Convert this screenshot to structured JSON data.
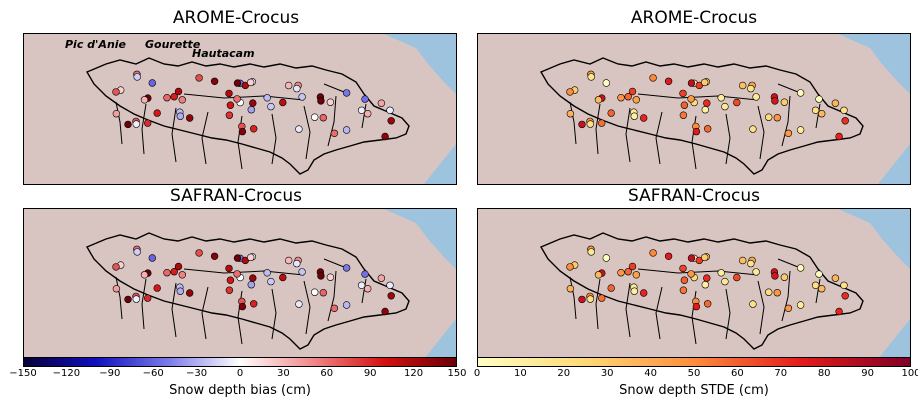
{
  "panels": [
    {
      "title": "AROME-Crocus"
    },
    {
      "title": "AROME-Crocus"
    },
    {
      "title": "SAFRAN-Crocus"
    },
    {
      "title": "SAFRAN-Crocus"
    }
  ],
  "site_labels": [
    "Pic d'Anie",
    "Gourette",
    "Hautacam"
  ],
  "colorbar_bias": {
    "label": "Snow depth bias (cm)",
    "ticks": [
      "−150",
      "−120",
      "−90",
      "−60",
      "−30",
      "0",
      "30",
      "60",
      "90",
      "120",
      "150"
    ],
    "colors": [
      "#08003a",
      "#1010c0",
      "#7a7ae8",
      "#ffffff",
      "#f08a8a",
      "#d41010",
      "#6a0008"
    ]
  },
  "colorbar_stde": {
    "label": "Snow depth STDE (cm)",
    "ticks": [
      "0",
      "10",
      "20",
      "30",
      "40",
      "50",
      "60",
      "70",
      "80",
      "90",
      "100"
    ],
    "colors": [
      "#ffffc4",
      "#fed976",
      "#fd8d3c",
      "#e31a1c",
      "#800026"
    ]
  },
  "colors": {
    "land": "#d8c5c1",
    "sea": "#9ec3df",
    "outline": "#000000"
  }
}
